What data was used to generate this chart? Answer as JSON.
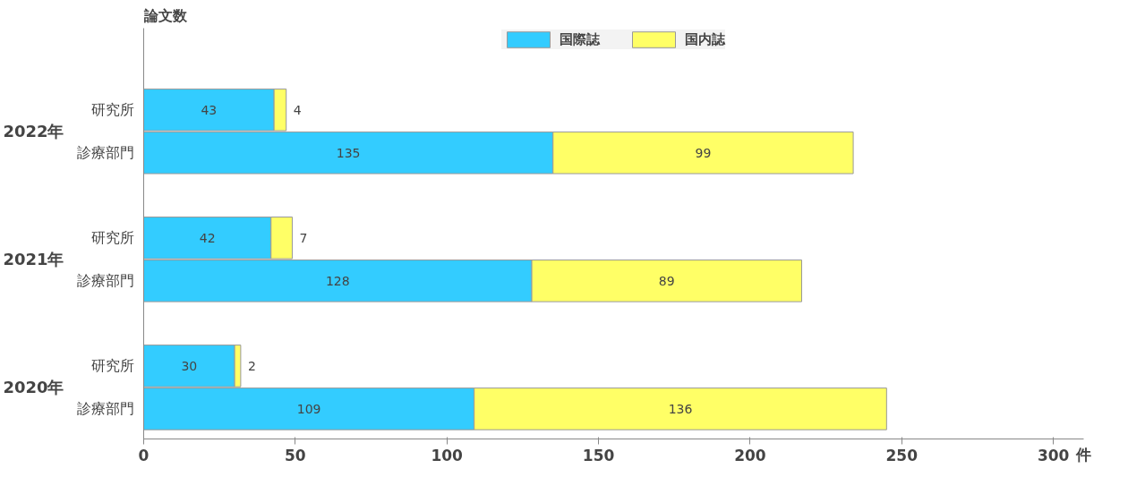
{
  "chart_data": {
    "type": "bar",
    "orientation": "horizontal",
    "stacked": true,
    "title": "論文数",
    "xlabel": "件",
    "categories": [
      "研究所",
      "診療部門",
      "研究所",
      "診療部門",
      "研究所",
      "診療部門"
    ],
    "annotations": [
      "2022年",
      "2021年",
      "2020年"
    ],
    "series": [
      {
        "name": "国際誌",
        "color": "#33ccff",
        "values": [
          43,
          135,
          42,
          128,
          30,
          109
        ]
      },
      {
        "name": "国内誌",
        "color": "#ffff66",
        "values": [
          4,
          99,
          7,
          89,
          2,
          136
        ]
      }
    ],
    "xlim": [
      0,
      310
    ],
    "xticks": [
      0,
      50,
      100,
      150,
      200,
      250,
      300
    ],
    "data_labels": true,
    "legend": "top",
    "grid": false
  }
}
